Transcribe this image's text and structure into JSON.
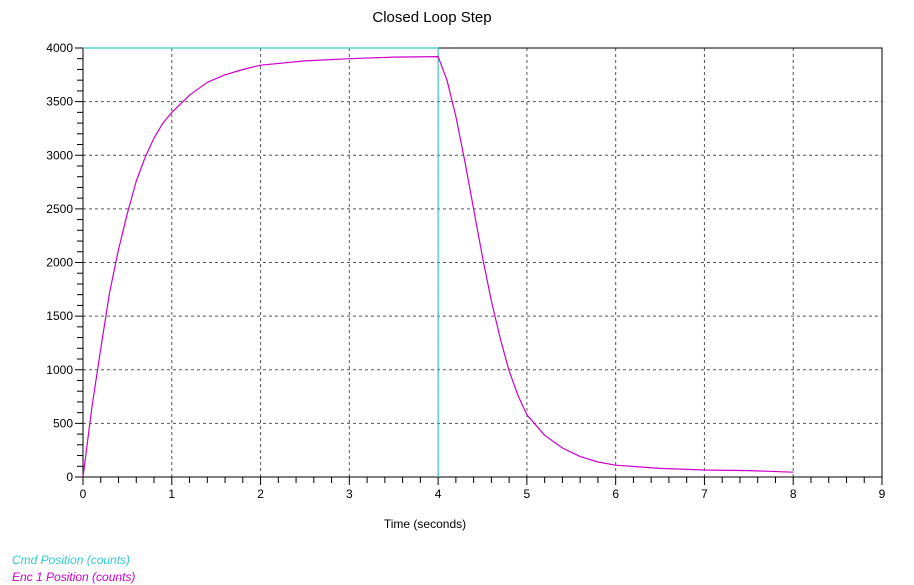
{
  "chart_data": {
    "type": "line",
    "title": "Closed Loop Step",
    "xlabel": "Time (seconds)",
    "ylabel": "",
    "xlim": [
      0,
      9
    ],
    "ylim": [
      0,
      4000
    ],
    "x_ticks": [
      "0",
      "1",
      "2",
      "3",
      "4",
      "5",
      "6",
      "7",
      "8",
      "9"
    ],
    "y_ticks": [
      "0",
      "500",
      "1000",
      "1500",
      "2000",
      "2500",
      "3000",
      "3500",
      "4000"
    ],
    "grid": true,
    "legend_position": "bottom-left",
    "series": [
      {
        "name": "Cmd Position (counts)",
        "color": "#33CCCC",
        "points": [
          [
            0,
            4000
          ],
          [
            4,
            4000
          ],
          [
            4,
            2000
          ],
          [
            4,
            0
          ]
        ]
      },
      {
        "name": "Enc 1 Position (counts)",
        "color": "#CC00CC",
        "points": [
          [
            0,
            0
          ],
          [
            0.1,
            650
          ],
          [
            0.2,
            1200
          ],
          [
            0.3,
            1720
          ],
          [
            0.4,
            2120
          ],
          [
            0.5,
            2460
          ],
          [
            0.6,
            2760
          ],
          [
            0.7,
            2980
          ],
          [
            0.8,
            3160
          ],
          [
            0.9,
            3300
          ],
          [
            1.0,
            3400
          ],
          [
            1.2,
            3560
          ],
          [
            1.4,
            3680
          ],
          [
            1.6,
            3750
          ],
          [
            1.8,
            3800
          ],
          [
            2.0,
            3840
          ],
          [
            2.5,
            3880
          ],
          [
            3.0,
            3900
          ],
          [
            3.5,
            3915
          ],
          [
            4.0,
            3920
          ],
          [
            4.1,
            3700
          ],
          [
            4.2,
            3360
          ],
          [
            4.3,
            2950
          ],
          [
            4.4,
            2500
          ],
          [
            4.5,
            2050
          ],
          [
            4.6,
            1640
          ],
          [
            4.7,
            1290
          ],
          [
            4.8,
            990
          ],
          [
            4.9,
            760
          ],
          [
            5.0,
            580
          ],
          [
            5.2,
            390
          ],
          [
            5.4,
            270
          ],
          [
            5.6,
            190
          ],
          [
            5.8,
            140
          ],
          [
            6.0,
            110
          ],
          [
            6.5,
            80
          ],
          [
            7.0,
            65
          ],
          [
            7.5,
            60
          ],
          [
            8.0,
            45
          ]
        ]
      }
    ]
  }
}
